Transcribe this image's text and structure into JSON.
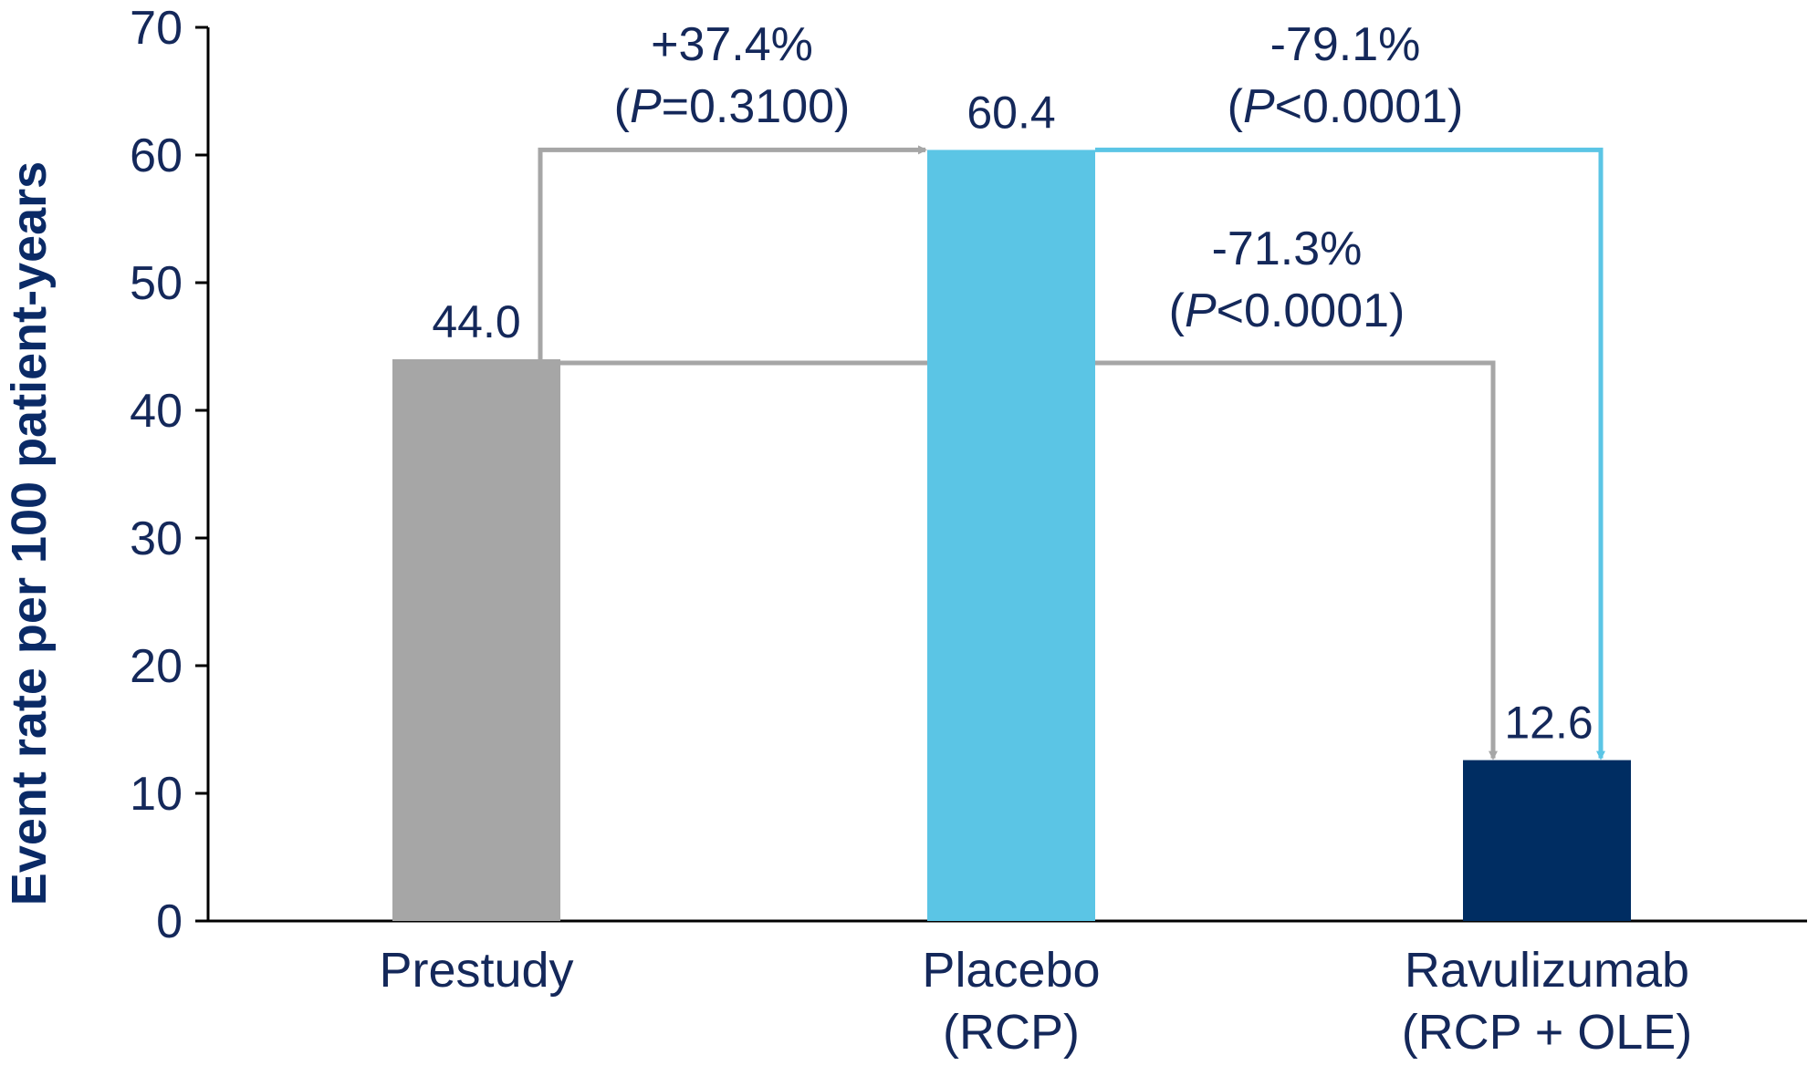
{
  "chart_data": {
    "type": "bar",
    "xlabel": "",
    "ylabel": "Event rate per 100 patient-years",
    "ylim": [
      0,
      70
    ],
    "yticks": [
      "0",
      "10",
      "20",
      "30",
      "40",
      "50",
      "60",
      "70"
    ],
    "categories": [
      {
        "line1": "Prestudy",
        "line2": ""
      },
      {
        "line1": "Placebo",
        "line2": "(RCP)"
      },
      {
        "line1": "Ravulizumab",
        "line2": "(RCP + OLE)"
      }
    ],
    "values": [
      44.0,
      60.4,
      12.6
    ],
    "value_labels": [
      "44.0",
      "60.4",
      "12.6"
    ],
    "colors": [
      "#a6a6a6",
      "#5bc5e5",
      "#002d62"
    ],
    "grid": false,
    "annotations": [
      {
        "id": "prestudy-to-placebo",
        "from": 0,
        "to": 1,
        "color": "#a6a6a6",
        "change": "+37.4%",
        "p_prefix": "(",
        "p_italic": "P",
        "p_rest": "=0.3100)"
      },
      {
        "id": "placebo-to-ravulizumab",
        "from": 1,
        "to": 2,
        "color": "#5bc5e5",
        "change": "-79.1%",
        "p_prefix": "(",
        "p_italic": "P",
        "p_rest": "<0.0001)"
      },
      {
        "id": "prestudy-to-ravulizumab",
        "from": 0,
        "to": 2,
        "color": "#a6a6a6",
        "change": "-71.3%",
        "p_prefix": "(",
        "p_italic": "P",
        "p_rest": "<0.0001)"
      }
    ]
  }
}
